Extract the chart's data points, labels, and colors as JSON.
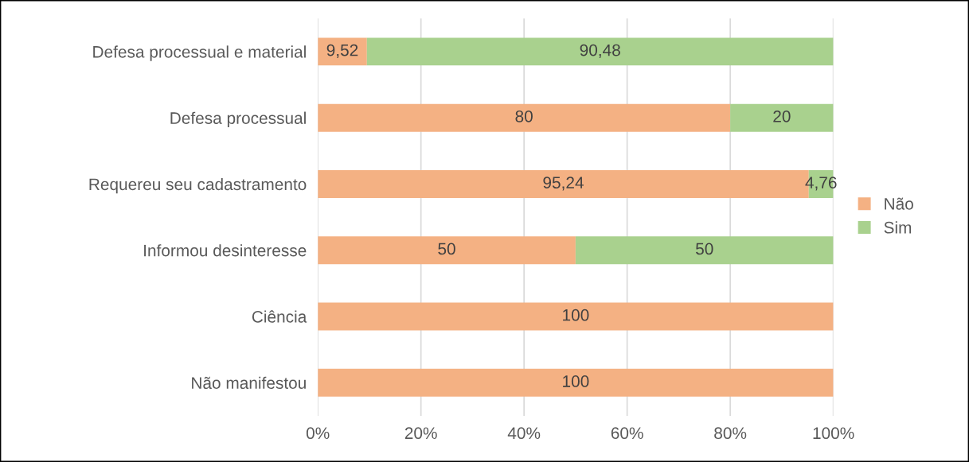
{
  "chart_data": {
    "type": "bar",
    "orientation": "horizontal",
    "stacked": true,
    "categories": [
      "Defesa processual e material",
      "Defesa processual",
      "Requereu seu cadastramento",
      "Informou desinteresse",
      "Ciência",
      "Não manifestou"
    ],
    "series": [
      {
        "name": "Não",
        "color": "#f4b183",
        "values": [
          9.52,
          80,
          95.24,
          50,
          100,
          100
        ],
        "value_labels": [
          "9,52",
          "80",
          "95,24",
          "50",
          "100",
          "100"
        ]
      },
      {
        "name": "Sim",
        "color": "#a9d18e",
        "values": [
          90.48,
          20,
          4.76,
          50,
          null,
          null
        ],
        "value_labels": [
          "90,48",
          "20",
          "4,76",
          "50",
          null,
          null
        ]
      }
    ],
    "xlim": [
      0,
      100
    ],
    "xticks": [
      {
        "value": 0,
        "label": "0%"
      },
      {
        "value": 20,
        "label": "20%"
      },
      {
        "value": 40,
        "label": "40%"
      },
      {
        "value": 60,
        "label": "60%"
      },
      {
        "value": 80,
        "label": "80%"
      },
      {
        "value": 100,
        "label": "100%"
      }
    ],
    "grid": "x",
    "legend": "right"
  }
}
